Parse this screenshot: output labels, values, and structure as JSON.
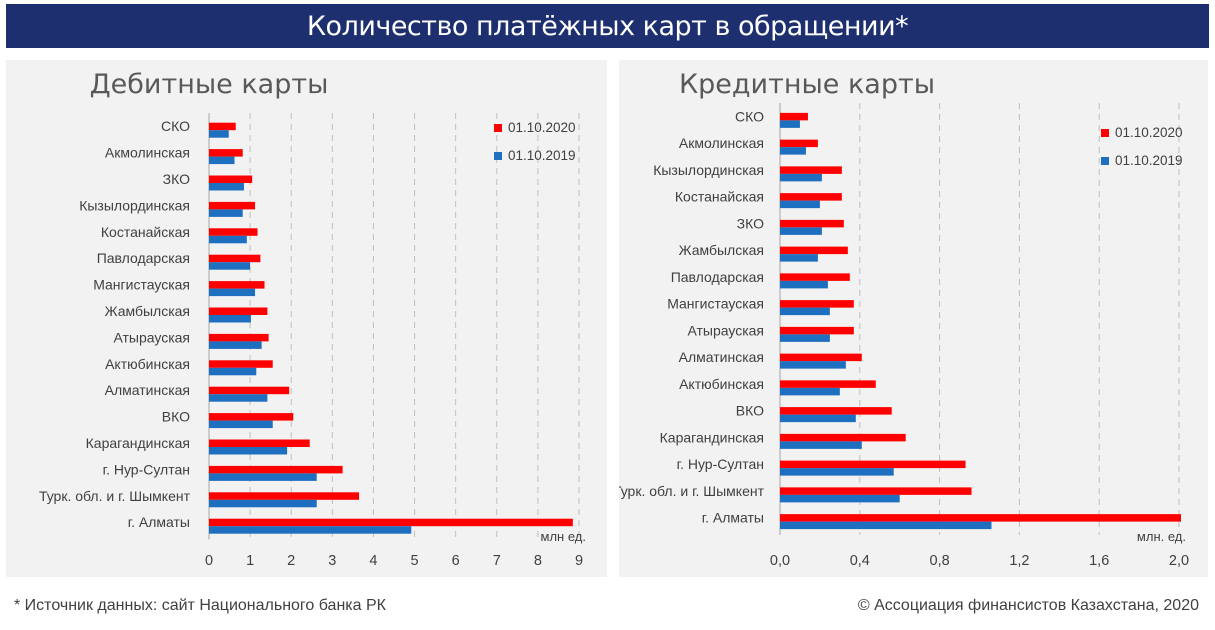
{
  "header": {
    "title": "Количество платёжных карт в обращении*"
  },
  "footer": {
    "source": "* Источник данных: сайт Национального банка РК",
    "copyright": "© Ассоциация финансистов Казахстана, 2020"
  },
  "colors": {
    "series_2020": "#ff0000",
    "series_2019": "#1f6fc0",
    "banner": "#1d2f6f",
    "panel": "#f2f2f2"
  },
  "chart_data": [
    {
      "id": "debit",
      "type": "bar",
      "orientation": "horizontal",
      "title": "Дебитные карты",
      "unit_label": "млн ед.",
      "categories": [
        "СКО",
        "Акмолинская",
        "ЗКО",
        "Кызылординская",
        "Костанайская",
        "Павлодарская",
        "Мангистауская",
        "Жамбылская",
        "Атырауская",
        "Актюбинская",
        "Алматинская",
        "ВКО",
        "Карагандинская",
        "г. Нур-Султан",
        "Турк. обл.  и г. Шымкент",
        "г. Алматы"
      ],
      "series": [
        {
          "name": "01.10.2020",
          "color": "#ff0000",
          "values": [
            0.65,
            0.82,
            1.05,
            1.12,
            1.18,
            1.25,
            1.35,
            1.42,
            1.45,
            1.55,
            1.95,
            2.05,
            2.45,
            3.25,
            3.65,
            8.85
          ]
        },
        {
          "name": "01.10.2019",
          "color": "#1f6fc0",
          "values": [
            0.48,
            0.62,
            0.85,
            0.82,
            0.92,
            1.0,
            1.12,
            1.02,
            1.28,
            1.15,
            1.42,
            1.55,
            1.9,
            2.62,
            2.62,
            4.92
          ]
        }
      ],
      "xlim": [
        0,
        9
      ],
      "ticks": [
        "0",
        "1",
        "2",
        "3",
        "4",
        "5",
        "6",
        "7",
        "8",
        "9"
      ],
      "tick_values": [
        0,
        1,
        2,
        3,
        4,
        5,
        6,
        7,
        8,
        9
      ],
      "grid": true,
      "legend": "top-right"
    },
    {
      "id": "credit",
      "type": "bar",
      "orientation": "horizontal",
      "title": "Кредитные карты",
      "unit_label": "млн. ед.",
      "categories": [
        "СКО",
        "Акмолинская",
        "Кызылординская",
        "Костанайская",
        "ЗКО",
        "Жамбылская",
        "Павлодарская",
        "Мангистауская",
        "Атырауская",
        "Алматинская",
        "Актюбинская",
        "ВКО",
        "Карагандинская",
        "г. Нур-Султан",
        "Турк. обл. и г. Шымкент",
        "г. Алматы"
      ],
      "series": [
        {
          "name": "01.10.2020",
          "color": "#ff0000",
          "values": [
            0.14,
            0.19,
            0.31,
            0.31,
            0.32,
            0.34,
            0.35,
            0.37,
            0.37,
            0.41,
            0.48,
            0.56,
            0.63,
            0.93,
            0.96,
            2.01
          ]
        },
        {
          "name": "01.10.2019",
          "color": "#1f6fc0",
          "values": [
            0.1,
            0.13,
            0.21,
            0.2,
            0.21,
            0.19,
            0.24,
            0.25,
            0.25,
            0.33,
            0.3,
            0.38,
            0.41,
            0.57,
            0.6,
            1.06
          ]
        }
      ],
      "xlim": [
        0,
        2.0
      ],
      "ticks": [
        "0,0",
        "0,4",
        "0,8",
        "1,2",
        "1,6",
        "2,0"
      ],
      "tick_values": [
        0,
        0.4,
        0.8,
        1.2,
        1.6,
        2.0
      ],
      "grid": true,
      "legend": "top-right"
    }
  ]
}
